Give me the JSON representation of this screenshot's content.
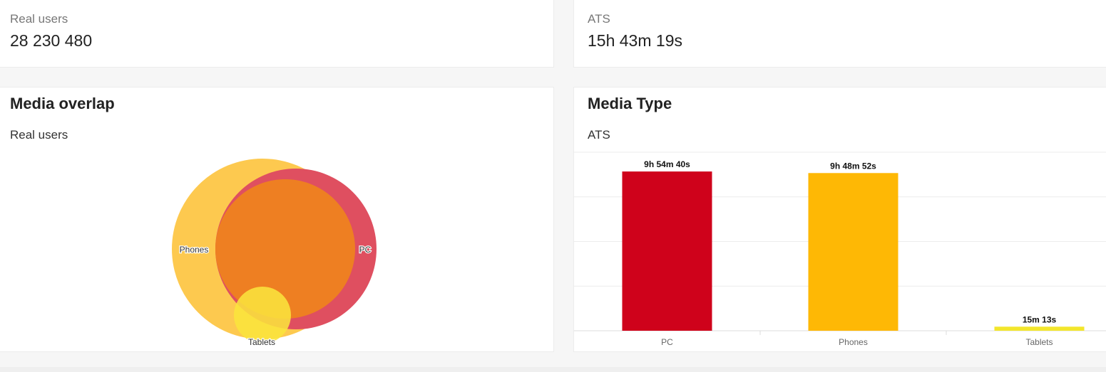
{
  "kpis": [
    {
      "label": "Real users",
      "value": "28 230 480"
    },
    {
      "label": "ATS",
      "value": "15h 43m 19s"
    }
  ],
  "overlap_card": {
    "title": "Media overlap",
    "subtitle": "Real users",
    "sets": [
      {
        "label": "Phones",
        "color": "#fdc94f"
      },
      {
        "label": "PC",
        "color": "#df4f60"
      },
      {
        "label": "Tablets",
        "color": "#fbe43c"
      }
    ],
    "intersection_color": "#ee7f22"
  },
  "media_type_card": {
    "title": "Media Type",
    "subtitle": "ATS"
  },
  "chart_data": [
    {
      "type": "venn",
      "sets": [
        "Phones",
        "PC",
        "Tablets"
      ]
    },
    {
      "type": "bar",
      "categories": [
        "PC",
        "Phones",
        "Tablets"
      ],
      "values": [
        35680,
        35332,
        913
      ],
      "data_labels": [
        "9h 54m 40s",
        "9h 48m 52s",
        "15m 13s"
      ],
      "colors": [
        "#cf021b",
        "#feb805",
        "#f3e62c"
      ],
      "ylim": [
        0,
        40000
      ],
      "grid": true,
      "legend": "none"
    }
  ]
}
